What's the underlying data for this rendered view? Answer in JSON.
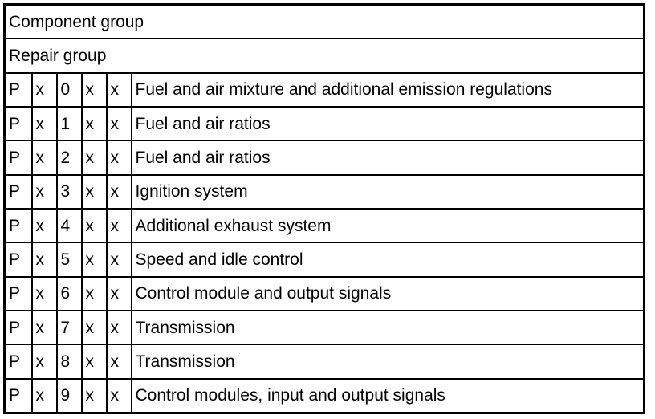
{
  "header": {
    "component_group": "Component group",
    "repair_group": "Repair group"
  },
  "rows": [
    {
      "c1": "P",
      "c2": "x",
      "c3": "0",
      "c4": "x",
      "c5": "x",
      "desc": "Fuel and air mixture and additional emission regulations"
    },
    {
      "c1": "P",
      "c2": "x",
      "c3": "1",
      "c4": "x",
      "c5": "x",
      "desc": "Fuel and air ratios"
    },
    {
      "c1": "P",
      "c2": "x",
      "c3": "2",
      "c4": "x",
      "c5": "x",
      "desc": "Fuel and air ratios"
    },
    {
      "c1": "P",
      "c2": "x",
      "c3": "3",
      "c4": "x",
      "c5": "x",
      "desc": "Ignition system"
    },
    {
      "c1": "P",
      "c2": "x",
      "c3": "4",
      "c4": "x",
      "c5": "x",
      "desc": "Additional exhaust system"
    },
    {
      "c1": "P",
      "c2": "x",
      "c3": "5",
      "c4": "x",
      "c5": "x",
      "desc": "Speed and idle control"
    },
    {
      "c1": "P",
      "c2": "x",
      "c3": "6",
      "c4": "x",
      "c5": "x",
      "desc": "Control module and output signals"
    },
    {
      "c1": "P",
      "c2": "x",
      "c3": "7",
      "c4": "x",
      "c5": "x",
      "desc": "Transmission"
    },
    {
      "c1": "P",
      "c2": "x",
      "c3": "8",
      "c4": "x",
      "c5": "x",
      "desc": "Transmission"
    },
    {
      "c1": "P",
      "c2": "x",
      "c3": "9",
      "c4": "x",
      "c5": "x",
      "desc": "Control modules, input and output signals"
    }
  ]
}
